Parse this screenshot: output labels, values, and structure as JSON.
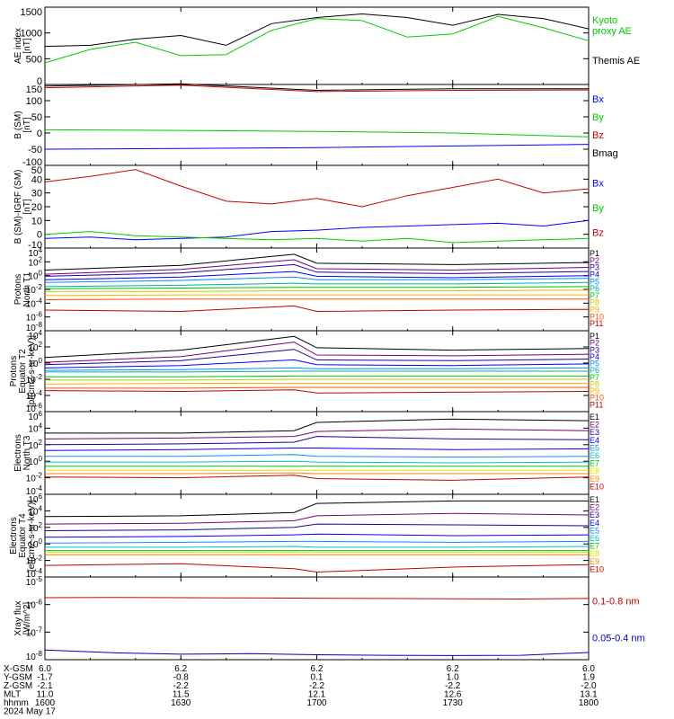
{
  "footer": {
    "rows": [
      {
        "label": "X-GSM",
        "values": [
          "6.0",
          "6.2",
          "6.2",
          "6.2",
          "6.0"
        ]
      },
      {
        "label": "Y-GSM",
        "values": [
          "-1.7",
          "-0.8",
          "0.1",
          "1.0",
          "1.9"
        ]
      },
      {
        "label": "Z-GSM",
        "values": [
          "-2.1",
          "-2.2",
          "-2.2",
          "-2.2",
          "-2.0"
        ]
      },
      {
        "label": "MLT",
        "values": [
          "11.0",
          "11.5",
          "12.1",
          "12.6",
          "13.1"
        ]
      },
      {
        "label": "hhmm",
        "values": [
          "1600",
          "1630",
          "1700",
          "1730",
          "1800"
        ]
      }
    ],
    "date": "2024 May 17"
  },
  "chart_data": [
    {
      "type": "line",
      "ylabel": "AE index\n[nT]",
      "ylim": [
        0,
        1500
      ],
      "yticks": [
        "0",
        "500",
        "1000",
        "1500"
      ],
      "x": [
        1600,
        1610,
        1620,
        1630,
        1640,
        1650,
        1700,
        1710,
        1720,
        1730,
        1740,
        1750,
        1800
      ],
      "series": [
        {
          "name": "Kyoto proxy AE",
          "color": "#00cc00",
          "values": [
            420,
            680,
            820,
            560,
            580,
            1050,
            1280,
            1240,
            920,
            980,
            1320,
            1100,
            850
          ]
        },
        {
          "name": "Themis AE",
          "color": "#000000",
          "values": [
            740,
            760,
            880,
            950,
            760,
            1180,
            1300,
            1370,
            1300,
            1150,
            1360,
            1280,
            1080
          ]
        }
      ],
      "legend": "right"
    },
    {
      "type": "line",
      "ylabel": "B (SM)\n[nT]",
      "ylim": [
        -100,
        150
      ],
      "yticks": [
        "-100",
        "-50",
        "0",
        "50",
        "100",
        "150"
      ],
      "x": [
        1600,
        1630,
        1700,
        1730,
        1800
      ],
      "series": [
        {
          "name": "Bx",
          "color": "#0000ff",
          "values": [
            -50,
            -48,
            -45,
            -40,
            -35
          ]
        },
        {
          "name": "By",
          "color": "#00cc00",
          "values": [
            10,
            8,
            5,
            0,
            -12
          ]
        },
        {
          "name": "Bz",
          "color": "#cc0000",
          "values": [
            140,
            148,
            128,
            132,
            133
          ]
        },
        {
          "name": "Bmag",
          "color": "#000000",
          "values": [
            145,
            152,
            132,
            137,
            137
          ]
        }
      ],
      "legend": "right"
    },
    {
      "type": "line",
      "ylabel": "B (SM)-IGRF (SM)\n[nT]",
      "ylim": [
        -10,
        50
      ],
      "yticks": [
        "-10",
        "0",
        "10",
        "20",
        "30",
        "40",
        "50"
      ],
      "x": [
        1600,
        1610,
        1620,
        1630,
        1640,
        1650,
        1700,
        1710,
        1720,
        1730,
        1740,
        1750,
        1800
      ],
      "series": [
        {
          "name": "Bx",
          "color": "#0000ff",
          "values": [
            -3,
            -2,
            -4,
            -3,
            -2,
            2,
            3,
            5,
            6,
            7,
            8,
            6,
            10
          ]
        },
        {
          "name": "By",
          "color": "#00cc00",
          "values": [
            0,
            2,
            -1,
            -2,
            -3,
            -4,
            -3,
            -5,
            -3,
            -6,
            -5,
            -4,
            -3
          ]
        },
        {
          "name": "Bz",
          "color": "#cc0000",
          "values": [
            38,
            42,
            47,
            35,
            24,
            22,
            26,
            20,
            28,
            34,
            40,
            30,
            33
          ]
        }
      ],
      "legend": "right"
    },
    {
      "type": "line",
      "ylabel": "Protons\nNorth T1",
      "ylim": [
        -8,
        4
      ],
      "yticks": [
        "10^-8",
        "10^-6",
        "10^-4",
        "10^-2",
        "10^0",
        "10^2",
        "10^4"
      ],
      "x": [
        1600,
        1630,
        1655,
        1700,
        1730,
        1800
      ],
      "channels": [
        "P1",
        "P2",
        "P3",
        "P4",
        "P5",
        "P6",
        "P7",
        "P8",
        "P9",
        "P10",
        "P11"
      ],
      "colors": [
        "#000000",
        "#7a007a",
        "#2000a0",
        "#0000ff",
        "#0090ff",
        "#00b0a0",
        "#00c000",
        "#c8c800",
        "#ffb000",
        "#ff5000",
        "#c00000"
      ],
      "log_values": [
        [
          0.8,
          1.5,
          3.1,
          1.8,
          1.6,
          1.9
        ],
        [
          0.2,
          0.9,
          2.3,
          1.0,
          0.8,
          1.2
        ],
        [
          -0.1,
          0.4,
          1.6,
          0.5,
          0.3,
          0.6
        ],
        [
          -0.6,
          -0.2,
          0.6,
          -0.1,
          -0.3,
          0.0
        ],
        [
          -1.0,
          -0.7,
          -0.2,
          -0.6,
          -0.6,
          -0.4
        ],
        [
          -1.6,
          -1.4,
          -1.1,
          -1.2,
          -1.2,
          -1.0
        ],
        [
          -1.9,
          -1.8,
          -1.7,
          -1.7,
          -1.7,
          -1.6
        ],
        [
          -2.3,
          -2.3,
          -2.2,
          -2.2,
          -2.2,
          -2.1
        ],
        [
          -2.9,
          -2.8,
          -2.8,
          -2.8,
          -2.8,
          -2.8
        ],
        [
          -3.5,
          -3.4,
          -3.4,
          -3.4,
          -3.4,
          -3.4
        ],
        [
          -5.0,
          -5.2,
          -4.4,
          -5.2,
          -5.0,
          -4.9
        ]
      ],
      "legend": "right"
    },
    {
      "type": "line",
      "ylabel": "Protons\nEquator T2\n[p/(cm2-s-sr-keV)]",
      "ylim": [
        -6,
        4
      ],
      "yticks": [
        "10^-6",
        "10^-4",
        "10^-2",
        "10^0",
        "10^2",
        "10^4"
      ],
      "x": [
        1600,
        1630,
        1655,
        1700,
        1730,
        1800
      ],
      "channels": [
        "P1",
        "P2",
        "P3",
        "P4",
        "P5",
        "P6",
        "P7",
        "P8",
        "P9",
        "P10",
        "P11"
      ],
      "colors": [
        "#000000",
        "#7a007a",
        "#2000a0",
        "#0000ff",
        "#0090ff",
        "#00b0a0",
        "#00c000",
        "#c8c800",
        "#ffb000",
        "#ff5000",
        "#c00000"
      ],
      "log_values": [
        [
          0.7,
          1.6,
          3.3,
          1.9,
          1.6,
          1.8
        ],
        [
          0.1,
          0.8,
          2.6,
          1.0,
          0.9,
          1.1
        ],
        [
          -0.2,
          0.3,
          1.7,
          0.4,
          0.3,
          0.5
        ],
        [
          -0.6,
          -0.3,
          0.4,
          -0.2,
          -0.3,
          -0.1
        ],
        [
          -0.9,
          -0.8,
          -0.6,
          -0.7,
          -0.7,
          -0.6
        ],
        [
          -1.1,
          -1.1,
          -1.0,
          -1.0,
          -1.0,
          -1.0
        ],
        [
          -1.7,
          -1.7,
          -1.6,
          -1.6,
          -1.6,
          -1.6
        ],
        [
          -2.1,
          -2.1,
          -2.0,
          -2.0,
          -2.0,
          -2.0
        ],
        [
          -2.6,
          -2.5,
          -2.5,
          -2.5,
          -2.5,
          -2.5
        ],
        [
          -3.1,
          -3.1,
          -3.0,
          -3.0,
          -3.0,
          -3.0
        ],
        [
          -3.4,
          -3.5,
          -3.3,
          -3.7,
          -3.6,
          -3.5
        ]
      ],
      "legend": "right"
    },
    {
      "type": "line",
      "ylabel": "Electrons\nNorth T3",
      "ylim": [
        -4,
        6
      ],
      "yticks": [
        "10^-4",
        "10^-2",
        "10^0",
        "10^2",
        "10^4",
        "10^6"
      ],
      "x": [
        1600,
        1630,
        1655,
        1700,
        1730,
        1800
      ],
      "channels": [
        "E1",
        "E2",
        "E3",
        "E4",
        "E5",
        "E6",
        "E7",
        "E8",
        "E9",
        "E10"
      ],
      "colors": [
        "#000000",
        "#7a007a",
        "#2000a0",
        "#0000ff",
        "#0090ff",
        "#00c0c0",
        "#00c000",
        "#e0e000",
        "#ff8000",
        "#c00000"
      ],
      "log_values": [
        [
          3.4,
          3.4,
          3.7,
          4.7,
          5.1,
          4.9
        ],
        [
          2.7,
          2.8,
          3.0,
          3.6,
          3.9,
          3.7
        ],
        [
          2.0,
          2.1,
          2.3,
          3.0,
          2.7,
          2.6
        ],
        [
          1.3,
          1.4,
          1.6,
          1.6,
          1.4,
          1.5
        ],
        [
          0.6,
          0.6,
          0.8,
          0.6,
          0.5,
          0.6
        ],
        [
          -0.1,
          -0.1,
          0.0,
          -0.1,
          -0.2,
          -0.1
        ],
        [
          -0.6,
          -0.6,
          -0.6,
          -0.6,
          -0.6,
          -0.6
        ],
        [
          -1.1,
          -1.1,
          -1.1,
          -1.1,
          -1.1,
          -1.1
        ],
        [
          -1.5,
          -1.5,
          -1.4,
          -1.5,
          -1.5,
          -1.5
        ],
        [
          -1.9,
          -2.0,
          -1.7,
          -2.1,
          -2.3,
          -1.9
        ]
      ],
      "legend": "right"
    },
    {
      "type": "line",
      "ylabel": "Electrons\nEquator T4\n[e/(cm2-s-sr-keV)]",
      "ylim": [
        -4,
        6
      ],
      "yticks": [
        "10^-4",
        "10^-2",
        "10^0",
        "10^2",
        "10^4",
        "10^6"
      ],
      "x": [
        1600,
        1630,
        1655,
        1700,
        1730,
        1800
      ],
      "channels": [
        "E1",
        "E2",
        "E3",
        "E4",
        "E5",
        "E6",
        "E7",
        "E8",
        "E9",
        "E10"
      ],
      "colors": [
        "#000000",
        "#7a007a",
        "#2000a0",
        "#0000ff",
        "#0090ff",
        "#00c0c0",
        "#00c000",
        "#e0e000",
        "#ff8000",
        "#c00000"
      ],
      "log_values": [
        [
          3.3,
          3.4,
          3.8,
          4.9,
          5.2,
          5.2
        ],
        [
          2.4,
          2.5,
          2.8,
          3.4,
          3.7,
          3.5
        ],
        [
          1.6,
          1.7,
          2.0,
          2.4,
          2.3,
          2.2
        ],
        [
          0.8,
          0.9,
          1.1,
          1.2,
          1.0,
          1.1
        ],
        [
          0.1,
          0.2,
          0.3,
          0.3,
          0.2,
          0.3
        ],
        [
          -0.4,
          -0.4,
          -0.3,
          -0.4,
          -0.4,
          -0.3
        ],
        [
          -0.8,
          -0.8,
          -0.8,
          -0.8,
          -0.8,
          -0.8
        ],
        [
          -1.0,
          -1.0,
          -1.0,
          -1.0,
          -1.0,
          -1.0
        ],
        [
          -1.3,
          -1.3,
          -1.3,
          -1.3,
          -1.3,
          -1.3
        ],
        [
          -2.6,
          -2.4,
          -3.0,
          -3.4,
          -2.8,
          -2.5
        ]
      ],
      "legend": "right"
    },
    {
      "type": "line",
      "ylabel": "Xray flux\n[W/m^2]",
      "ylim": [
        -8,
        -5
      ],
      "yticks": [
        "10^-8",
        "10^-7",
        "10^-6",
        "10^-5"
      ],
      "x": [
        1600,
        1615,
        1630,
        1645,
        1700,
        1715,
        1730,
        1745,
        1800
      ],
      "series": [
        {
          "name": "0.1-0.8 nm",
          "color": "#cc0000",
          "log_values": [
            -5.75,
            -5.74,
            -5.75,
            -5.76,
            -5.77,
            -5.78,
            -5.79,
            -5.8,
            -5.78
          ]
        },
        {
          "name": "0.05-0.4 nm",
          "color": "#0000cc",
          "log_values": [
            -7.65,
            -7.75,
            -7.8,
            -7.78,
            -7.82,
            -7.84,
            -7.85,
            -7.84,
            -7.74
          ]
        }
      ],
      "legend": "right"
    }
  ]
}
